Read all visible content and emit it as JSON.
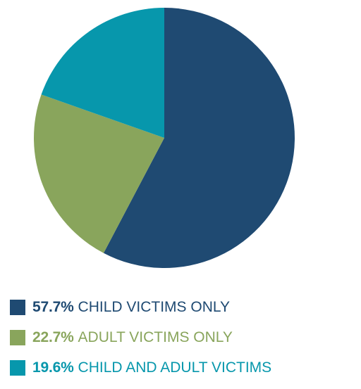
{
  "chart_data": {
    "type": "pie",
    "title": "",
    "slices": [
      {
        "value": 57.7,
        "value_label": "57.7%",
        "label": "CHILD VICTIMS ONLY",
        "color": "#1f4a72"
      },
      {
        "value": 22.7,
        "value_label": "22.7%",
        "label": "ADULT VICTIMS ONLY",
        "color": "#89a55c"
      },
      {
        "value": 19.6,
        "value_label": "19.6%",
        "label": "CHILD AND ADULT VICTIMS",
        "color": "#0797ac"
      }
    ],
    "legend_position": "bottom"
  }
}
